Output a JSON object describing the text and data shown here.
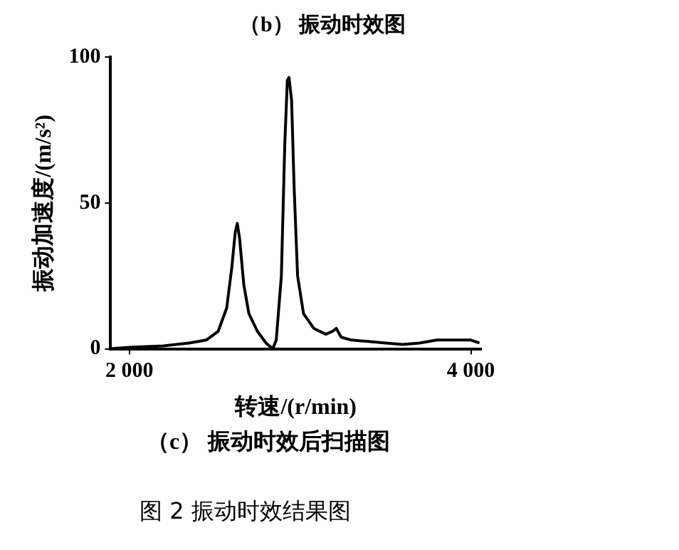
{
  "chart_data": {
    "type": "line",
    "title": "（c） 振动时效后扫描图",
    "xlabel": "转速/(r/min)",
    "ylabel": "振动加速度/(m/s²)",
    "annotations": [
      "（b） 振动时效图",
      "图 2 振动时效结果图"
    ],
    "x": [
      1890,
      2000,
      2200,
      2350,
      2450,
      2520,
      2570,
      2600,
      2620,
      2632,
      2645,
      2670,
      2700,
      2750,
      2800,
      2840,
      2860,
      2890,
      2910,
      2925,
      2935,
      2950,
      2965,
      2985,
      3020,
      3080,
      3150,
      3190,
      3212,
      3240,
      3300,
      3400,
      3500,
      3600,
      3700,
      3800,
      3900,
      4000,
      4050
    ],
    "series": [
      {
        "color": "#000000",
        "values": [
          0,
          0.5,
          1,
          2,
          3,
          6,
          14,
          28,
          40,
          43,
          38,
          22,
          12,
          6,
          2,
          0,
          3,
          25,
          70,
          92,
          93,
          85,
          55,
          25,
          12,
          7,
          5,
          6,
          7,
          4,
          3,
          2.5,
          2,
          1.5,
          2,
          3,
          3,
          3,
          2
        ]
      }
    ],
    "xlim": [
      1890,
      4060
    ],
    "xticks": [
      {
        "value": 2000,
        "label": "2 000"
      },
      {
        "value": 4000,
        "label": "4 000"
      }
    ],
    "ylim": [
      0,
      100
    ],
    "yticks": [
      0,
      50,
      100
    ],
    "grid": false,
    "legend": false,
    "marker": "none",
    "line_style": "solid"
  }
}
